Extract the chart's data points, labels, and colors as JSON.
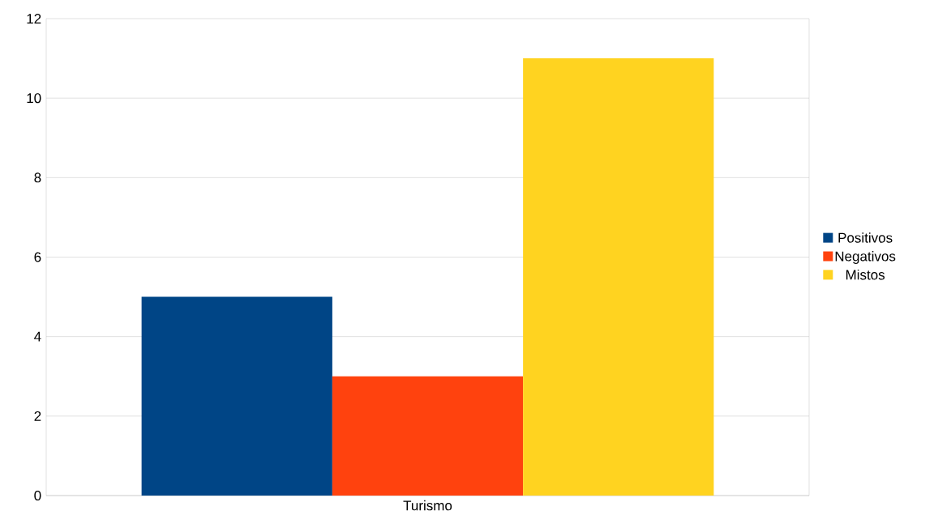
{
  "chart_data": {
    "type": "bar",
    "categories": [
      "Turismo"
    ],
    "series": [
      {
        "name": "Positivos",
        "color": "#004586",
        "values": [
          5
        ]
      },
      {
        "name": "Negativos",
        "color": "#ff420e",
        "values": [
          3
        ]
      },
      {
        "name": "Mistos",
        "color": "#ffd320",
        "values": [
          11
        ]
      }
    ],
    "ylim": [
      0,
      12
    ],
    "yticks": [
      0,
      2,
      4,
      6,
      8,
      10,
      12
    ],
    "grid": "y",
    "legend": "right"
  }
}
